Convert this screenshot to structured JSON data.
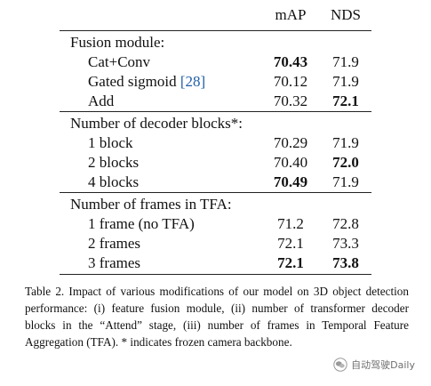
{
  "table": {
    "headers": [
      "",
      "mAP",
      "NDS"
    ],
    "sections": [
      {
        "title": "Fusion module:",
        "rows": [
          {
            "label": "Cat+Conv",
            "map": "70.43",
            "nds": "71.9",
            "map_bold": true,
            "nds_bold": false
          },
          {
            "label": "Gated sigmoid ",
            "cite": "[28]",
            "map": "70.12",
            "nds": "71.9",
            "map_bold": false,
            "nds_bold": false
          },
          {
            "label": "Add",
            "map": "70.32",
            "nds": "72.1",
            "map_bold": false,
            "nds_bold": true
          }
        ]
      },
      {
        "title": "Number of decoder blocks*:",
        "rows": [
          {
            "label": "1 block",
            "map": "70.29",
            "nds": "71.9",
            "map_bold": false,
            "nds_bold": false
          },
          {
            "label": "2 blocks",
            "map": "70.40",
            "nds": "72.0",
            "map_bold": false,
            "nds_bold": true
          },
          {
            "label": "4 blocks",
            "map": "70.49",
            "nds": "71.9",
            "map_bold": true,
            "nds_bold": false
          }
        ]
      },
      {
        "title": "Number of frames in TFA:",
        "rows": [
          {
            "label": "1 frame (no TFA)",
            "map": "71.2",
            "nds": "72.8",
            "map_bold": false,
            "nds_bold": false
          },
          {
            "label": "2 frames",
            "map": "72.1",
            "nds": "73.3",
            "map_bold": false,
            "nds_bold": false
          },
          {
            "label": "3 frames",
            "map": "72.1",
            "nds": "73.8",
            "map_bold": true,
            "nds_bold": true
          }
        ]
      }
    ]
  },
  "caption": "Table 2.  Impact of various modifications of our model on 3D object detection performance: (i) feature fusion module, (ii) number of transformer decoder blocks in the “Attend” stage, (iii) number of frames in Temporal Feature Aggregation (TFA). * indicates frozen camera backbone.",
  "watermark": {
    "text": "自动驾驶Daily",
    "icon": "wechat-logo-icon"
  }
}
